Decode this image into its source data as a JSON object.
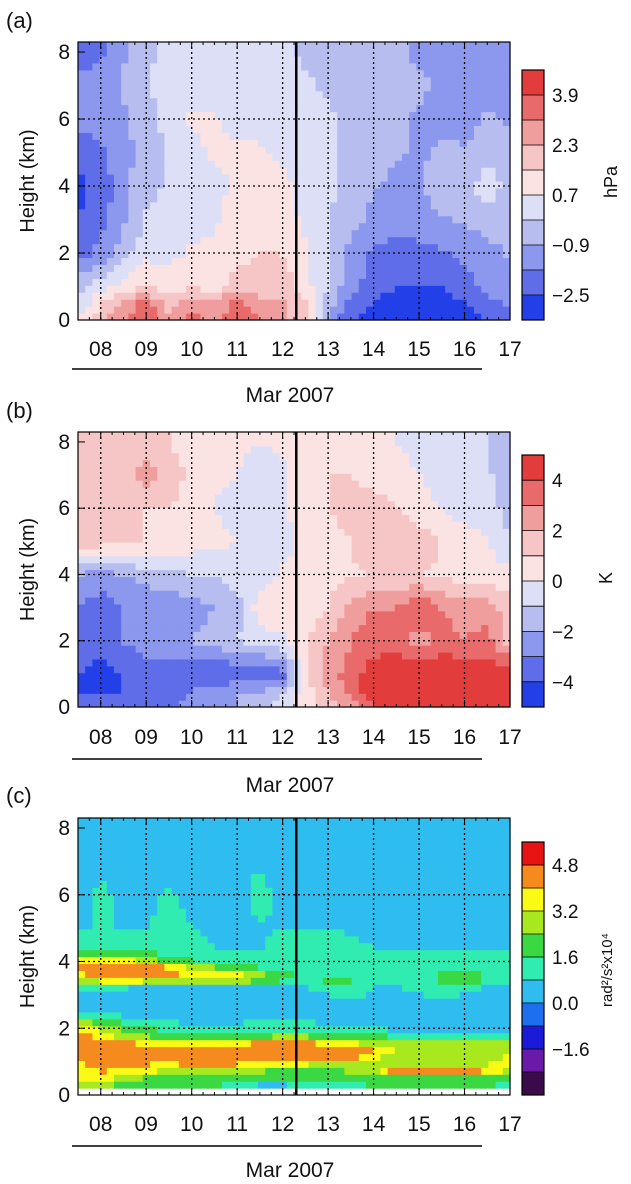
{
  "figure": {
    "panels": [
      {
        "label": "(a)",
        "ylabel": "Height (km)",
        "xlabel": "Mar 2007",
        "colorbar_unit": "hPa",
        "colorbar_labels": [
          "3.9",
          "2.3",
          "0.7",
          "−0.9",
          "−2.5"
        ]
      },
      {
        "label": "(b)",
        "ylabel": "Height (km)",
        "xlabel": "Mar 2007",
        "colorbar_unit": "K",
        "colorbar_labels": [
          "4",
          "2",
          "0",
          "−2",
          "−4"
        ]
      },
      {
        "label": "(c)",
        "ylabel": "Height (km)",
        "xlabel": "Mar 2007",
        "colorbar_unit": "rad²/s²x10⁴",
        "colorbar_labels": [
          "4.8",
          "3.2",
          "1.6",
          "0.0",
          "−1.6"
        ]
      }
    ]
  },
  "chart_data": [
    {
      "type": "heatmap",
      "panel": "(a)",
      "xlabel": "Mar 2007",
      "ylabel": "Height (km)",
      "x_ticks": [
        "08",
        "09",
        "10",
        "11",
        "12",
        "13",
        "14",
        "15",
        "16",
        "17"
      ],
      "y_ticks": [
        0,
        2,
        4,
        6,
        8
      ],
      "xlim": [
        7.5,
        17.0
      ],
      "ylim": [
        0,
        8.3
      ],
      "colorbar": {
        "unit": "hPa",
        "tick_labels": [
          "3.9",
          "2.3",
          "0.7",
          "−0.9",
          "−2.5"
        ],
        "levels": [
          -3.3,
          -2.5,
          -1.7,
          -0.9,
          -0.1,
          0.7,
          1.5,
          2.3,
          3.1,
          3.9,
          4.7
        ],
        "colors": [
          "#2340e8",
          "#5f6ee8",
          "#8c97ee",
          "#b7beef",
          "#dcdff6",
          "#fbe3e3",
          "#f6c5c5",
          "#ef9d9d",
          "#e86a6a",
          "#e23c3c"
        ]
      },
      "vertical_line_x": 12.3,
      "grid": true,
      "z_heights_km": [
        0,
        0.5,
        1,
        2,
        3,
        4,
        5,
        6,
        7,
        8
      ],
      "z_days": [
        7.5,
        8.0,
        8.5,
        9.0,
        9.5,
        10.0,
        10.5,
        11.0,
        11.5,
        12.0,
        12.5,
        13.0,
        13.5,
        14.0,
        14.5,
        15.0,
        15.5,
        16.0,
        16.5,
        17.0
      ],
      "z": [
        [
          0.8,
          2.0,
          3.0,
          4.0,
          2.5,
          3.5,
          2.5,
          4.0,
          3.0,
          2.5,
          1.5,
          -1.0,
          -2.5,
          -3.0,
          -3.5,
          -3.5,
          -3.5,
          -3.0,
          -2.5,
          -2.0
        ],
        [
          0.0,
          1.5,
          2.5,
          3.5,
          2.0,
          3.0,
          2.5,
          3.5,
          2.5,
          2.5,
          1.5,
          -0.5,
          -2.0,
          -2.5,
          -3.0,
          -3.0,
          -3.0,
          -2.5,
          -2.0,
          -1.5
        ],
        [
          -0.5,
          0.5,
          1.0,
          1.5,
          1.0,
          1.5,
          1.0,
          2.0,
          2.0,
          2.0,
          1.0,
          0.0,
          -1.5,
          -2.0,
          -2.5,
          -2.5,
          -2.5,
          -2.0,
          -1.5,
          -1.0
        ],
        [
          -2.0,
          -1.5,
          -0.5,
          0.5,
          0.5,
          0.8,
          0.8,
          1.2,
          1.5,
          1.5,
          0.8,
          0.0,
          -1.2,
          -1.8,
          -2.0,
          -2.0,
          -1.8,
          -1.5,
          -1.2,
          -0.8
        ],
        [
          -2.5,
          -2.0,
          -1.0,
          0.0,
          0.2,
          0.5,
          0.6,
          1.0,
          1.5,
          1.2,
          0.5,
          0.0,
          -0.5,
          -1.2,
          -1.5,
          -1.2,
          -1.0,
          -0.8,
          -0.5,
          -0.5
        ],
        [
          -2.8,
          -2.2,
          -1.2,
          -0.3,
          0.0,
          0.3,
          0.5,
          0.8,
          1.2,
          1.0,
          0.3,
          0.0,
          -0.3,
          -0.8,
          -1.2,
          -1.0,
          -0.5,
          -0.5,
          0.5,
          -0.5
        ],
        [
          -2.2,
          -1.8,
          -1.2,
          -0.5,
          0.0,
          0.5,
          0.8,
          0.8,
          0.8,
          0.5,
          0.2,
          0.0,
          -0.2,
          -0.5,
          -0.8,
          -1.0,
          -0.8,
          -0.8,
          -0.5,
          -0.5
        ],
        [
          -1.5,
          -1.5,
          -1.0,
          -0.5,
          0.2,
          0.8,
          0.8,
          0.5,
          0.5,
          0.3,
          0.2,
          0.0,
          -0.2,
          -0.5,
          -0.8,
          -1.0,
          -1.0,
          -1.2,
          -0.8,
          -1.0
        ],
        [
          -1.5,
          -1.5,
          -0.8,
          -0.2,
          0.3,
          0.5,
          0.3,
          0.2,
          0.2,
          0.2,
          0.0,
          -0.2,
          -0.3,
          -0.5,
          -0.8,
          -0.8,
          -1.0,
          -1.5,
          -1.0,
          -1.2
        ],
        [
          -2.0,
          -1.8,
          -1.0,
          -0.2,
          0.0,
          0.0,
          0.0,
          0.0,
          0.2,
          0.0,
          -0.2,
          -0.3,
          -0.5,
          -0.5,
          -0.8,
          -1.0,
          -1.0,
          -1.5,
          -1.2,
          -1.5
        ]
      ]
    },
    {
      "type": "heatmap",
      "panel": "(b)",
      "xlabel": "Mar 2007",
      "ylabel": "Height (km)",
      "x_ticks": [
        "08",
        "09",
        "10",
        "11",
        "12",
        "13",
        "14",
        "15",
        "16",
        "17"
      ],
      "y_ticks": [
        0,
        2,
        4,
        6,
        8
      ],
      "xlim": [
        7.5,
        17.0
      ],
      "ylim": [
        0,
        8.3
      ],
      "colorbar": {
        "unit": "K",
        "tick_labels": [
          "4",
          "2",
          "0",
          "−2",
          "−4"
        ],
        "levels": [
          -5,
          -4,
          -3,
          -2,
          -1,
          0,
          1,
          2,
          3,
          4,
          5
        ],
        "colors": [
          "#2340e8",
          "#5f6ee8",
          "#8c97ee",
          "#b7beef",
          "#dcdff6",
          "#fbe3e3",
          "#f6c5c5",
          "#ef9d9d",
          "#e86a6a",
          "#e23c3c"
        ]
      },
      "vertical_line_x": 12.3,
      "grid": true,
      "z_heights_km": [
        0,
        0.5,
        1,
        2,
        3,
        4,
        5,
        6,
        7,
        8
      ],
      "z_days": [
        7.5,
        8.0,
        8.5,
        9.0,
        9.5,
        10.0,
        10.5,
        11.0,
        11.5,
        12.0,
        12.5,
        13.0,
        13.5,
        14.0,
        14.5,
        15.0,
        15.5,
        16.0,
        16.5,
        17.0
      ],
      "z": [
        [
          -4.0,
          -4.0,
          -4.0,
          -4.0,
          -3.5,
          -2.5,
          -2.0,
          -2.0,
          -1.5,
          -0.5,
          0.5,
          1.5,
          2.5,
          4.0,
          4.5,
          4.5,
          4.5,
          4.5,
          4.0,
          4.0
        ],
        [
          -4.0,
          -4.0,
          -4.0,
          -4.0,
          -3.5,
          -3.0,
          -2.5,
          -2.0,
          -2.0,
          -1.0,
          0.5,
          2.0,
          3.5,
          4.5,
          5.0,
          5.0,
          5.0,
          5.0,
          4.5,
          4.5
        ],
        [
          -4.0,
          -4.5,
          -4.0,
          -3.5,
          -3.5,
          -4.0,
          -4.0,
          -4.0,
          -4.0,
          -3.5,
          1.0,
          2.5,
          3.5,
          4.5,
          5.0,
          5.0,
          5.0,
          5.0,
          4.5,
          4.5
        ],
        [
          -3.0,
          -3.5,
          -3.0,
          -2.5,
          -2.5,
          -2.0,
          -1.5,
          -1.0,
          -0.5,
          -0.2,
          0.8,
          2.0,
          3.0,
          3.5,
          3.5,
          2.5,
          3.5,
          3.0,
          3.5,
          1.5
        ],
        [
          -3.0,
          -3.5,
          -3.0,
          -3.0,
          -2.5,
          -2.5,
          -2.0,
          -1.5,
          0.5,
          0.8,
          0.5,
          1.0,
          2.5,
          3.0,
          3.0,
          4.0,
          3.0,
          2.5,
          2.5,
          1.5
        ],
        [
          -2.0,
          -2.5,
          -2.0,
          -1.5,
          -1.5,
          -1.0,
          -1.0,
          -0.5,
          -0.5,
          0.2,
          0.2,
          0.5,
          0.8,
          1.0,
          1.0,
          1.0,
          0.8,
          0.5,
          0.5,
          0.3
        ],
        [
          1.5,
          1.5,
          1.0,
          1.0,
          0.8,
          0.5,
          0.3,
          0.0,
          -0.5,
          -0.5,
          0.3,
          0.5,
          1.0,
          2.0,
          2.0,
          1.5,
          1.0,
          0.5,
          0.0,
          -1.0
        ],
        [
          1.5,
          2.0,
          1.5,
          1.0,
          1.0,
          0.5,
          0.0,
          -0.5,
          -0.5,
          0.0,
          0.5,
          1.0,
          1.5,
          1.5,
          1.0,
          0.5,
          0.0,
          -0.5,
          -0.5,
          -1.5
        ],
        [
          1.0,
          1.5,
          1.5,
          2.5,
          1.5,
          0.8,
          0.2,
          0.0,
          -0.5,
          -0.2,
          0.5,
          1.0,
          1.0,
          0.5,
          0.5,
          0.0,
          -0.5,
          -1.0,
          -1.0,
          -1.0
        ],
        [
          1.5,
          2.0,
          1.5,
          1.5,
          1.0,
          0.5,
          0.5,
          0.2,
          0.0,
          0.2,
          0.5,
          0.5,
          0.5,
          0.2,
          0.0,
          -0.5,
          -0.5,
          -1.0,
          -1.0,
          -1.5
        ]
      ]
    },
    {
      "type": "heatmap",
      "panel": "(c)",
      "xlabel": "Mar 2007",
      "ylabel": "Height (km)",
      "x_ticks": [
        "08",
        "09",
        "10",
        "11",
        "12",
        "13",
        "14",
        "15",
        "16",
        "17"
      ],
      "y_ticks": [
        0,
        2,
        4,
        6,
        8
      ],
      "xlim": [
        7.5,
        17.0
      ],
      "ylim": [
        0,
        8.3
      ],
      "colorbar": {
        "unit": "rad²/s²x10⁴",
        "tick_labels": [
          "4.8",
          "3.2",
          "1.6",
          "0.0",
          "−1.6"
        ],
        "levels": [
          -2.4,
          -1.6,
          -0.8,
          0.0,
          0.8,
          1.6,
          2.4,
          3.2,
          4.0,
          4.8,
          5.6
        ],
        "colors": [
          "#3a0a4a",
          "#6a1aa8",
          "#1a1ad8",
          "#1e6ff0",
          "#2fbdf0",
          "#30ecb0",
          "#3ad842",
          "#a8e81e",
          "#fafa14",
          "#f58a1e",
          "#e81414"
        ]
      },
      "vertical_line_x": 12.3,
      "grid": true,
      "z_heights_km": [
        0.3,
        0.5,
        0.8,
        1.0,
        1.3,
        1.5,
        1.8,
        2.0,
        2.5,
        3.0,
        3.3,
        3.5,
        3.8,
        4.0,
        4.3,
        5.0,
        6.0,
        7.0,
        8.0
      ],
      "z_days": [
        7.5,
        8.0,
        8.5,
        9.0,
        9.5,
        10.0,
        10.5,
        11.0,
        11.5,
        12.0,
        12.5,
        13.0,
        13.5,
        14.0,
        14.5,
        15.0,
        15.5,
        16.0,
        16.5,
        17.0
      ],
      "z": [
        [
          3.5,
          3.5,
          3.0,
          2.5,
          2.5,
          2.5,
          2.5,
          2.0,
          1.5,
          1.5,
          2.0,
          2.0,
          2.0,
          2.5,
          2.5,
          2.5,
          2.5,
          2.5,
          2.5,
          2.0
        ],
        [
          4.0,
          4.5,
          3.5,
          3.0,
          3.0,
          3.0,
          3.0,
          2.5,
          2.5,
          2.5,
          2.5,
          2.5,
          3.0,
          3.0,
          3.0,
          3.0,
          3.0,
          3.0,
          3.0,
          2.5
        ],
        [
          4.5,
          5.0,
          4.5,
          4.5,
          4.0,
          4.0,
          3.5,
          3.5,
          3.5,
          3.0,
          3.0,
          3.0,
          3.5,
          3.5,
          6.0,
          6.0,
          6.0,
          6.0,
          5.0,
          4.0
        ],
        [
          4.5,
          5.2,
          5.0,
          5.0,
          5.0,
          5.5,
          6.0,
          5.5,
          5.0,
          4.5,
          4.5,
          4.0,
          4.0,
          3.5,
          3.0,
          3.0,
          3.0,
          3.0,
          3.5,
          4.5
        ],
        [
          5.0,
          6.0,
          6.0,
          6.0,
          6.0,
          6.0,
          6.0,
          6.0,
          6.0,
          5.5,
          6.0,
          6.0,
          6.0,
          5.0,
          4.0,
          3.5,
          3.5,
          3.5,
          3.5,
          4.0
        ],
        [
          6.0,
          6.0,
          5.5,
          5.0,
          4.5,
          4.5,
          4.5,
          5.0,
          5.5,
          6.0,
          5.5,
          5.0,
          4.5,
          4.0,
          3.5,
          3.5,
          3.5,
          3.5,
          3.5,
          3.5
        ],
        [
          5.0,
          4.5,
          3.5,
          3.0,
          2.5,
          2.5,
          2.5,
          2.5,
          2.5,
          3.0,
          3.0,
          2.5,
          2.5,
          2.5,
          2.0,
          2.0,
          2.0,
          2.0,
          2.0,
          2.0
        ],
        [
          4.5,
          4.0,
          3.0,
          2.5,
          2.0,
          1.8,
          1.8,
          2.0,
          2.0,
          2.0,
          2.0,
          2.0,
          1.8,
          1.5,
          1.5,
          1.5,
          1.5,
          1.5,
          1.5,
          1.5
        ],
        [
          1.5,
          1.5,
          1.0,
          1.0,
          1.0,
          1.0,
          0.8,
          0.8,
          1.0,
          1.0,
          1.0,
          0.8,
          0.8,
          1.0,
          1.0,
          1.0,
          1.0,
          1.0,
          1.0,
          1.0
        ],
        [
          1.0,
          1.0,
          0.8,
          1.0,
          1.0,
          1.0,
          1.0,
          1.0,
          1.0,
          1.0,
          1.0,
          1.5,
          2.0,
          1.5,
          1.0,
          1.5,
          2.0,
          1.5,
          1.0,
          1.0
        ],
        [
          2.5,
          2.5,
          2.0,
          1.5,
          1.5,
          1.5,
          1.5,
          1.5,
          1.0,
          1.0,
          1.5,
          2.5,
          2.5,
          1.5,
          1.5,
          2.5,
          1.5,
          2.5,
          1.5,
          1.5
        ],
        [
          4.0,
          5.0,
          5.5,
          5.5,
          5.0,
          5.0,
          5.0,
          5.0,
          4.0,
          3.0,
          2.5,
          2.5,
          2.5,
          2.0,
          2.0,
          2.0,
          3.0,
          3.5,
          2.5,
          2.0
        ],
        [
          5.5,
          6.0,
          6.0,
          5.5,
          5.0,
          4.0,
          3.5,
          3.0,
          2.5,
          2.0,
          2.0,
          2.0,
          2.0,
          2.0,
          2.0,
          2.0,
          2.0,
          2.5,
          2.0,
          1.5
        ],
        [
          4.5,
          5.0,
          4.5,
          4.0,
          3.0,
          2.5,
          2.0,
          2.0,
          2.0,
          2.0,
          2.0,
          2.0,
          2.0,
          2.0,
          2.0,
          2.0,
          1.8,
          1.8,
          1.8,
          1.8
        ],
        [
          2.5,
          2.5,
          2.5,
          2.5,
          2.0,
          1.8,
          1.6,
          1.6,
          1.6,
          1.8,
          1.8,
          2.5,
          1.8,
          1.6,
          1.6,
          1.6,
          1.6,
          1.6,
          1.6,
          1.6
        ],
        [
          1.6,
          1.6,
          1.6,
          1.6,
          2.0,
          1.6,
          1.5,
          1.5,
          1.5,
          1.6,
          1.6,
          1.6,
          1.5,
          1.5,
          1.5,
          1.5,
          1.5,
          1.5,
          1.5,
          1.5
        ],
        [
          1.0,
          2.0,
          1.2,
          1.2,
          1.8,
          1.2,
          1.0,
          1.0,
          2.0,
          1.2,
          1.2,
          1.5,
          1.0,
          1.0,
          1.0,
          1.5,
          1.0,
          1.0,
          1.0,
          1.0
        ],
        [
          1.2,
          1.2,
          1.0,
          1.0,
          1.0,
          1.0,
          1.0,
          1.5,
          1.5,
          1.2,
          1.0,
          1.5,
          1.2,
          1.0,
          1.0,
          1.0,
          1.0,
          1.0,
          1.0,
          1.0
        ],
        [
          1.0,
          1.5,
          1.2,
          1.0,
          1.0,
          1.0,
          1.0,
          1.0,
          1.0,
          1.0,
          1.0,
          1.2,
          1.0,
          1.0,
          1.0,
          1.0,
          1.0,
          1.0,
          1.0,
          1.0
        ]
      ]
    }
  ]
}
